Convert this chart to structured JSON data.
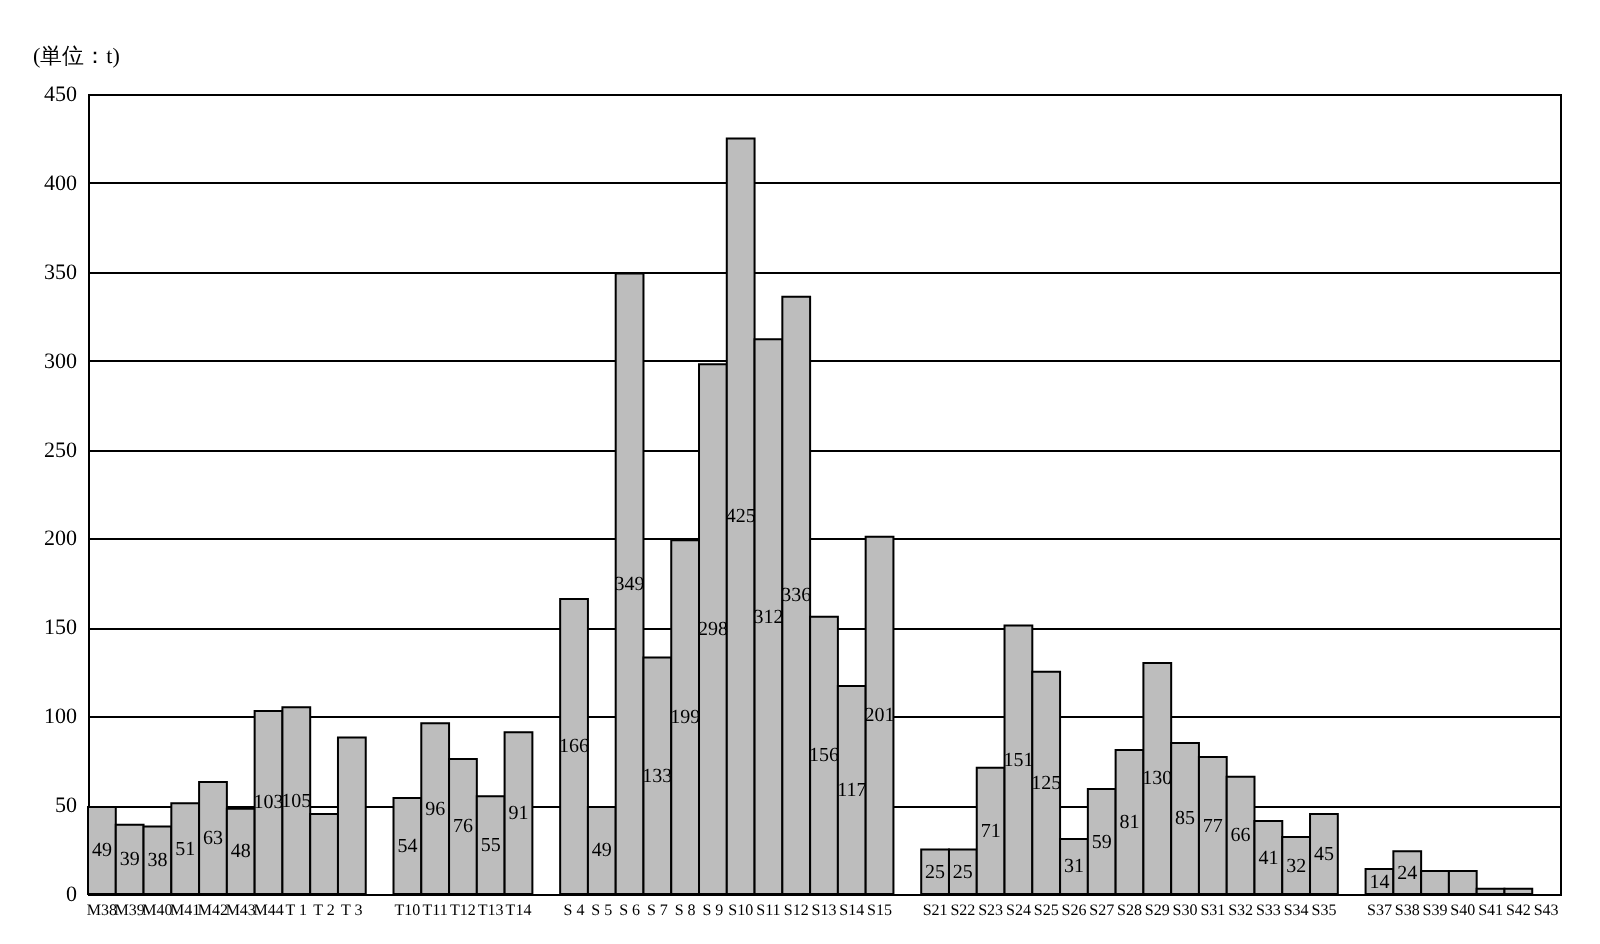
{
  "chart_data": {
    "type": "bar",
    "ylabel": "(単位：t)",
    "categories": [
      "M38",
      "M39",
      "M40",
      "M41",
      "M42",
      "M43",
      "M44",
      "T 1",
      "T 2",
      "T 3",
      null,
      "T10",
      "T11",
      "T12",
      "T13",
      "T14",
      null,
      "S 4",
      "S 5",
      "S 6",
      "S 7",
      "S 8",
      "S 9",
      "S10",
      "S11",
      "S12",
      "S13",
      "S14",
      "S15",
      null,
      "S21",
      "S22",
      "S23",
      "S24",
      "S25",
      "S26",
      "S27",
      "S28",
      "S29",
      "S30",
      "S31",
      "S32",
      "S33",
      "S34",
      "S35",
      null,
      "S37",
      "S38",
      "S39",
      "S40",
      "S41",
      "S42",
      "S43"
    ],
    "values": [
      49,
      39,
      38,
      51,
      63,
      48,
      103,
      105,
      45,
      88,
      null,
      54,
      96,
      76,
      55,
      91,
      null,
      166,
      49,
      349,
      133,
      199,
      298,
      425,
      312,
      336,
      156,
      117,
      201,
      null,
      25,
      25,
      71,
      151,
      125,
      31,
      59,
      81,
      130,
      85,
      77,
      66,
      41,
      32,
      45,
      null,
      14,
      24,
      13,
      13,
      3,
      3,
      null
    ],
    "value_labels": [
      "49",
      "39",
      "38",
      "51",
      "63",
      "48",
      "103",
      "105",
      null,
      null,
      null,
      "54",
      "96",
      "76",
      "55",
      "91",
      null,
      "166",
      "49",
      "349",
      "133",
      "199",
      "298",
      "425",
      "312",
      "336",
      "156",
      "117",
      "201",
      null,
      "25",
      "25",
      "71",
      "151",
      "125",
      "31",
      "59",
      "81",
      "130",
      "85",
      "77",
      "66",
      "41",
      "32",
      "45",
      null,
      "14",
      "24",
      null,
      null,
      null,
      null,
      null
    ],
    "color": "#bdbdbd",
    "ylim": [
      0,
      450
    ],
    "yticks": [
      0,
      50,
      100,
      150,
      200,
      250,
      300,
      350,
      400,
      450
    ],
    "grid": "y"
  }
}
